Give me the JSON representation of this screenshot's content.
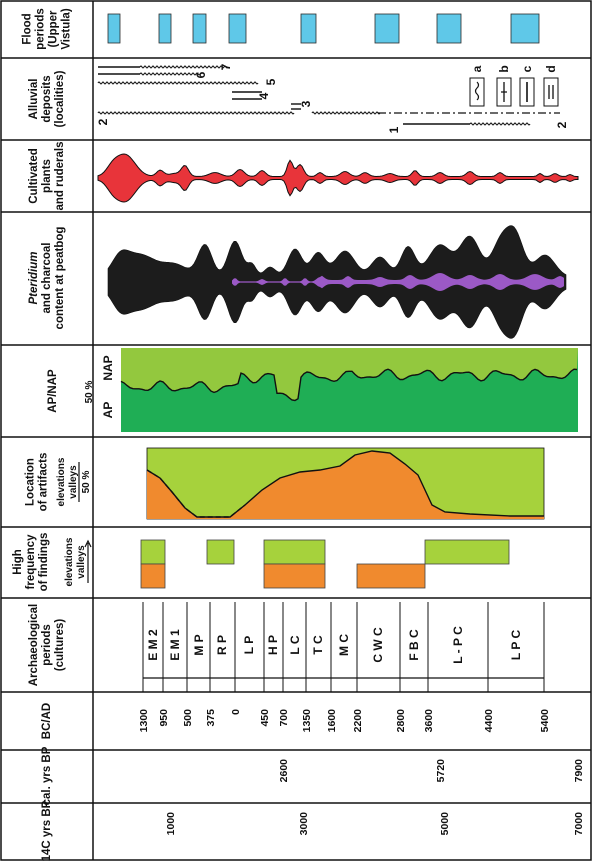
{
  "panels": {
    "flood": {
      "label_lines": [
        "Flood",
        "periods",
        "(Upper",
        "Vistula)"
      ],
      "color": "#5fc8e8"
    },
    "alluvial": {
      "label_lines": [
        "Alluvial",
        "deposits",
        "(localities)"
      ],
      "numbers": [
        "7",
        "6",
        "5",
        "4",
        "3",
        "2",
        "1",
        "2"
      ],
      "legend": [
        "a",
        "b",
        "c",
        "d"
      ]
    },
    "cultivated": {
      "label_lines": [
        "Cultivated",
        "plants",
        "and ruderals"
      ],
      "color": "#e8343a"
    },
    "pteridium": {
      "label_lines": [
        "Pteridium",
        "and charcoal",
        "content at peatbog"
      ],
      "charcoal_color": "#1c1c1c",
      "pteridium_color": "#9b59c6"
    },
    "apnap": {
      "label_lines": [
        "AP/NAP"
      ],
      "ap": "AP",
      "nap": "NAP",
      "pct": "50 %",
      "ap_color": "#1fae55",
      "nap_color": "#93c83e"
    },
    "artifacts": {
      "label_lines": [
        "Location",
        "of artifacts"
      ],
      "elevations": "elevations",
      "valleys": "valleys",
      "pct": "50 %",
      "elev_color": "#a6d23c",
      "valley_color": "#f08a2e"
    },
    "frequency": {
      "label_lines": [
        "High",
        "frequency",
        "of findings"
      ],
      "elevations": "elevations",
      "valleys": "valleys",
      "elev_color": "#a6d23c",
      "valley_color": "#f08a2e"
    },
    "archaeo": {
      "label_lines": [
        "Archaeological",
        "periods",
        "(cultures)"
      ],
      "periods": [
        "E M 2",
        "E M 1",
        "M P",
        "R P",
        "L P",
        "H P",
        "L C",
        "T C",
        "M C",
        "C W C",
        "F B C",
        "L - P C",
        "L P C"
      ]
    },
    "bcad": {
      "label": "BC/AD",
      "ticks": [
        "1300",
        "950",
        "500",
        "375",
        "0",
        "450",
        "700",
        "1350",
        "1600",
        "2200",
        "2800",
        "3600",
        "4400",
        "5400"
      ]
    },
    "cal": {
      "label": "cal. yrs BP",
      "ticks": [
        "2600",
        "5720",
        "7900"
      ]
    },
    "c14": {
      "label": "14C yrs BP",
      "label_sup": "14",
      "label_rest": "C yrs BP",
      "ticks": [
        "1000",
        "3000",
        "5000",
        "7000"
      ]
    }
  }
}
